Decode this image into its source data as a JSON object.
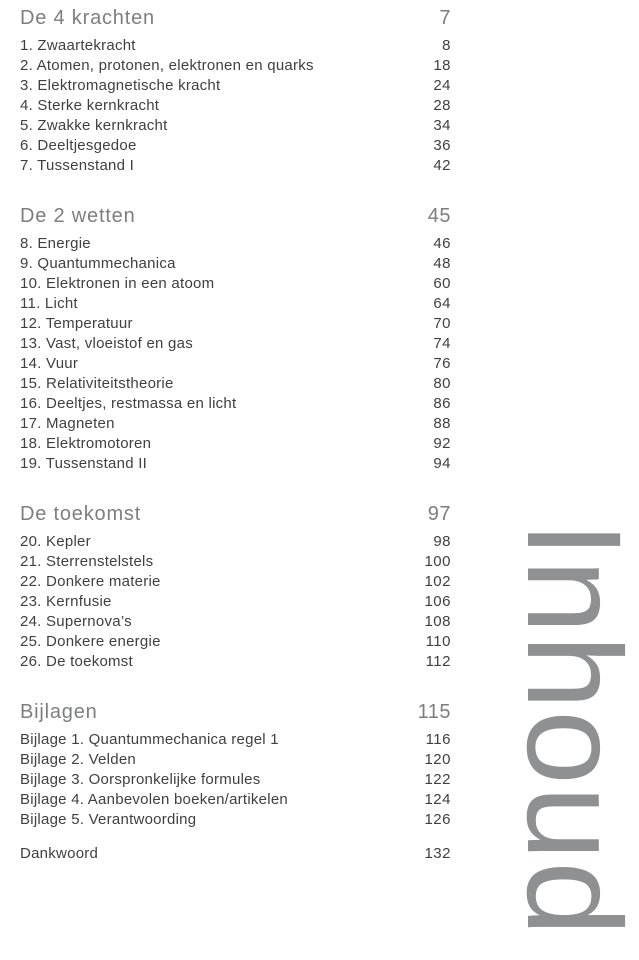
{
  "page": {
    "vertical_label": "Inhoud",
    "background_color": "#ffffff"
  },
  "colors": {
    "body_text": "#3f4042",
    "heading_text": "#7d7e80",
    "vertical_label": "#8f9091"
  },
  "sections": [
    {
      "title": "De 4 krachten",
      "page": "7",
      "items": [
        {
          "label": "1. Zwaartekracht",
          "page": "8"
        },
        {
          "label": "2. Atomen, protonen, elektronen en quarks",
          "page": "18"
        },
        {
          "label": "3. Elektromagnetische kracht",
          "page": "24"
        },
        {
          "label": "4. Sterke kernkracht",
          "page": "28"
        },
        {
          "label": "5. Zwakke kernkracht",
          "page": "34"
        },
        {
          "label": "6. Deeltjesgedoe",
          "page": "36"
        },
        {
          "label": "7. Tussenstand I",
          "page": "42"
        }
      ]
    },
    {
      "title": "De 2 wetten",
      "page": "45",
      "items": [
        {
          "label": "8. Energie",
          "page": "46"
        },
        {
          "label": "9. Quantummechanica",
          "page": "48"
        },
        {
          "label": "10. Elektronen in een atoom",
          "page": "60"
        },
        {
          "label": "11. Licht",
          "page": "64"
        },
        {
          "label": "12. Temperatuur",
          "page": "70"
        },
        {
          "label": "13. Vast, vloeistof en gas",
          "page": "74"
        },
        {
          "label": "14. Vuur",
          "page": "76"
        },
        {
          "label": "15. Relativiteitstheorie",
          "page": "80"
        },
        {
          "label": "16. Deeltjes, restmassa en licht",
          "page": "86"
        },
        {
          "label": "17. Magneten",
          "page": "88"
        },
        {
          "label": "18. Elektromotoren",
          "page": "92"
        },
        {
          "label": "19. Tussenstand II",
          "page": "94"
        }
      ]
    },
    {
      "title": "De toekomst",
      "page": "97",
      "items": [
        {
          "label": "20. Kepler",
          "page": "98"
        },
        {
          "label": "21. Sterrenstelstels",
          "page": "100"
        },
        {
          "label": "22. Donkere materie",
          "page": "102"
        },
        {
          "label": "23. Kernfusie",
          "page": "106"
        },
        {
          "label": "24. Supernova’s",
          "page": "108"
        },
        {
          "label": "25. Donkere energie",
          "page": "110"
        },
        {
          "label": "26. De toekomst",
          "page": "112"
        }
      ]
    },
    {
      "title": "Bijlagen",
      "page": "115",
      "items": [
        {
          "label": "Bijlage 1. Quantummechanica regel 1",
          "page": "116"
        },
        {
          "label": "Bijlage 2. Velden",
          "page": "120"
        },
        {
          "label": "Bijlage 3. Oorspronkelijke formules",
          "page": "122"
        },
        {
          "label": "Bijlage 4. Aanbevolen boeken/artikelen",
          "page": "124"
        },
        {
          "label": "Bijlage 5. Verantwoording",
          "page": "126"
        }
      ]
    }
  ],
  "footer": {
    "label": "Dankwoord",
    "page": "132"
  }
}
